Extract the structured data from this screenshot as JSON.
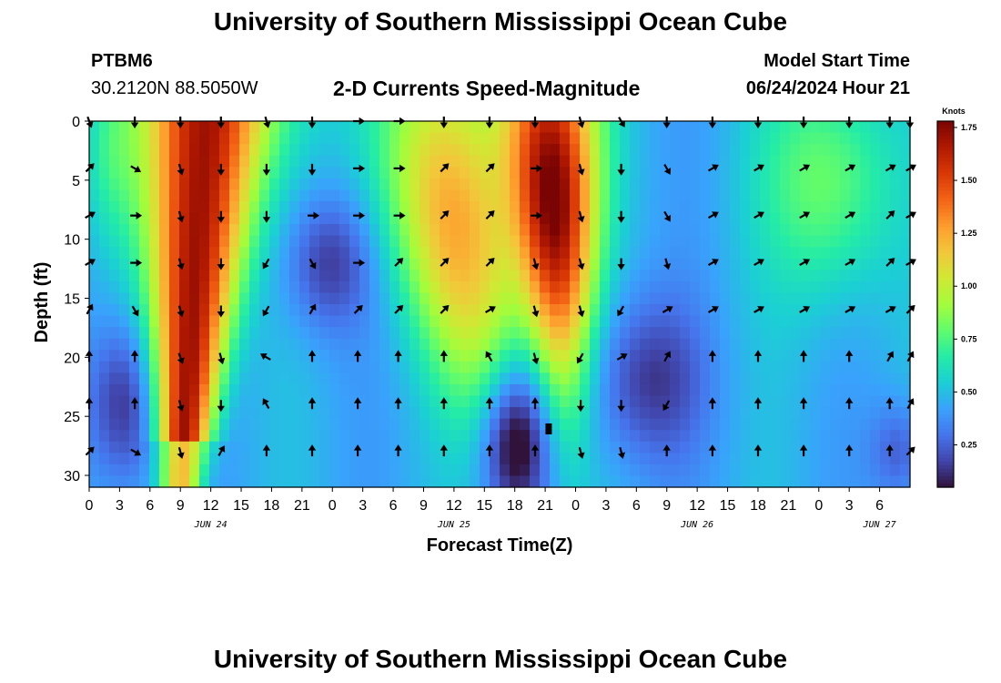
{
  "header": {
    "title": "University of Southern Mississippi Ocean Cube",
    "station": "PTBM6",
    "coordinates": "30.2120N  88.5050W",
    "plot_title": "2-D Currents Speed-Magnitude",
    "model_start_label": "Model Start Time",
    "model_start_value": "06/24/2024 Hour 21"
  },
  "footer": {
    "title": "University of Southern Mississippi Ocean Cube"
  },
  "colormap": [
    "#30123b",
    "#4145ab",
    "#4675ed",
    "#39a2fc",
    "#1bcfd4",
    "#24eca6",
    "#61fc6c",
    "#a4fc3b",
    "#d1e834",
    "#f3c63a",
    "#fe9b2d",
    "#f36315",
    "#d93806",
    "#b11901",
    "#7a0403"
  ],
  "chart_data": {
    "type": "heatmap",
    "title": "2-D Currents Speed-Magnitude",
    "xlabel": "Forecast Time(Z)",
    "ylabel": "Depth (ft)",
    "ylim": [
      31,
      0
    ],
    "xlim": [
      0,
      81
    ],
    "x_units": "hours since 06/24/2024 00Z",
    "y_ticks": [
      "0",
      "5",
      "10",
      "15",
      "20",
      "25",
      "30"
    ],
    "x_tick_labels": [
      "0",
      "3",
      "6",
      "9",
      "12",
      "15",
      "18",
      "21",
      "0",
      "3",
      "6",
      "9",
      "12",
      "15",
      "18",
      "21",
      "0",
      "3",
      "6",
      "9",
      "12",
      "15",
      "18",
      "21",
      "0",
      "3",
      "6"
    ],
    "date_labels": [
      {
        "label": "JUN 24",
        "hour": 12
      },
      {
        "label": "JUN 25",
        "hour": 36
      },
      {
        "label": "JUN 26",
        "hour": 60
      },
      {
        "label": "JUN 27",
        "hour": 78
      }
    ],
    "colorbar": {
      "label": "Knots",
      "min": 0.05,
      "max": 1.78,
      "ticks": [
        "0.25",
        "0.50",
        "0.75",
        "1.00",
        "1.25",
        "1.50",
        "1.75"
      ]
    },
    "vector_columns_hours": [
      0,
      4.5,
      9,
      13,
      17.5,
      22,
      26.5,
      30.5,
      35,
      39.5,
      44,
      48.5,
      52.5,
      57,
      61.5,
      66,
      70.5,
      75,
      79,
      81
    ],
    "vector_depths_ft": [
      0,
      4,
      8,
      12,
      16,
      20,
      24,
      28
    ],
    "vector_angles_deg": [
      [
        160,
        180,
        180,
        180,
        165,
        180,
        90,
        90,
        180,
        180,
        180,
        165,
        150,
        180,
        180,
        180,
        180,
        180,
        180,
        180
      ],
      [
        45,
        120,
        165,
        180,
        180,
        180,
        90,
        90,
        45,
        45,
        90,
        165,
        180,
        150,
        60,
        60,
        60,
        60,
        60,
        60
      ],
      [
        60,
        90,
        165,
        180,
        180,
        90,
        90,
        90,
        45,
        45,
        90,
        165,
        180,
        150,
        60,
        60,
        60,
        60,
        45,
        60
      ],
      [
        60,
        90,
        165,
        180,
        210,
        150,
        90,
        45,
        45,
        45,
        165,
        165,
        180,
        165,
        60,
        60,
        60,
        60,
        45,
        60
      ],
      [
        30,
        150,
        165,
        180,
        210,
        30,
        45,
        45,
        45,
        60,
        165,
        165,
        210,
        60,
        60,
        60,
        60,
        60,
        60,
        45
      ],
      [
        0,
        0,
        160,
        165,
        300,
        0,
        0,
        0,
        0,
        330,
        165,
        210,
        60,
        30,
        0,
        0,
        0,
        0,
        30,
        30
      ],
      [
        0,
        0,
        165,
        180,
        330,
        0,
        0,
        0,
        0,
        0,
        0,
        180,
        180,
        210,
        0,
        0,
        0,
        0,
        0,
        30
      ],
      [
        45,
        120,
        165,
        30,
        0,
        0,
        0,
        0,
        0,
        0,
        0,
        165,
        165,
        0,
        0,
        0,
        0,
        0,
        0,
        45
      ]
    ]
  }
}
